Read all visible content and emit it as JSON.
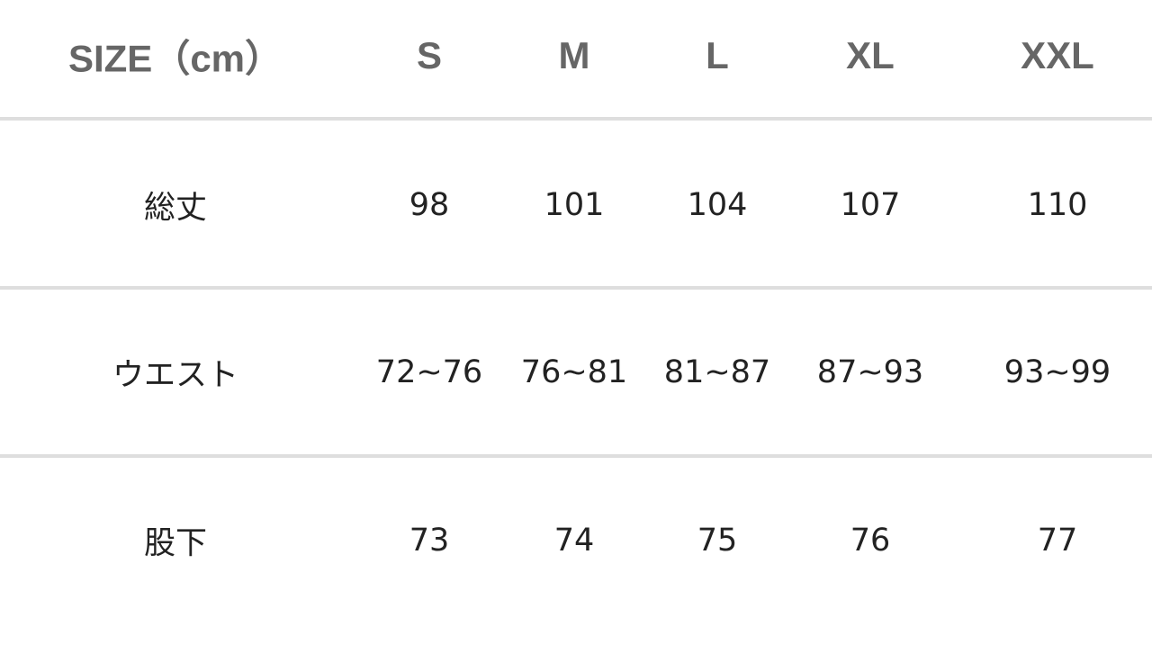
{
  "table": {
    "header": [
      "SIZE（cm）",
      "S",
      "M",
      "L",
      "XL",
      "XXL"
    ],
    "rows": [
      [
        "総丈",
        "98",
        "101",
        "104",
        "107",
        "110"
      ],
      [
        "ウエスト",
        "72~76",
        "76~81",
        "81~87",
        "87~93",
        "93~99"
      ],
      [
        "股下",
        "73",
        "74",
        "75",
        "76",
        "77"
      ]
    ]
  },
  "colors": {
    "header_text": "#666666",
    "body_text": "#222222",
    "divider": "#dedede"
  }
}
